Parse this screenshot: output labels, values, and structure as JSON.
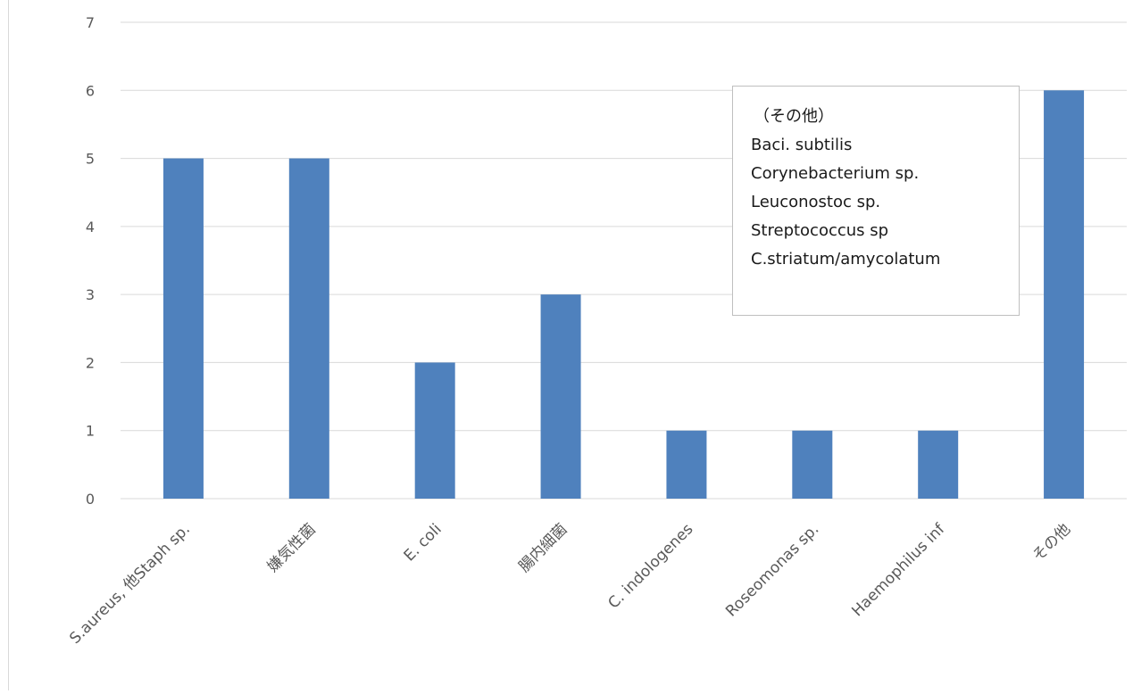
{
  "chart_data": {
    "type": "bar",
    "categories": [
      "S.aureus, 他Staph sp.",
      "嫌気性菌",
      "E. coli",
      "腸内細菌",
      "C. indologenes",
      "Roseomonas sp.",
      "Haemophilus inf",
      "その他"
    ],
    "values": [
      5,
      5,
      2,
      3,
      1,
      1,
      1,
      6
    ],
    "ylim": [
      0,
      7
    ],
    "yticks": [
      0,
      1,
      2,
      3,
      4,
      5,
      6,
      7
    ],
    "grid": true,
    "bar_color": "#4f81bd",
    "annotation": {
      "title": "（その他）",
      "lines": [
        "Baci. subtilis",
        "Corynebacterium sp.",
        "Leuconostoc sp.",
        "Streptococcus sp",
        "C.striatum/amycolatum"
      ]
    }
  }
}
